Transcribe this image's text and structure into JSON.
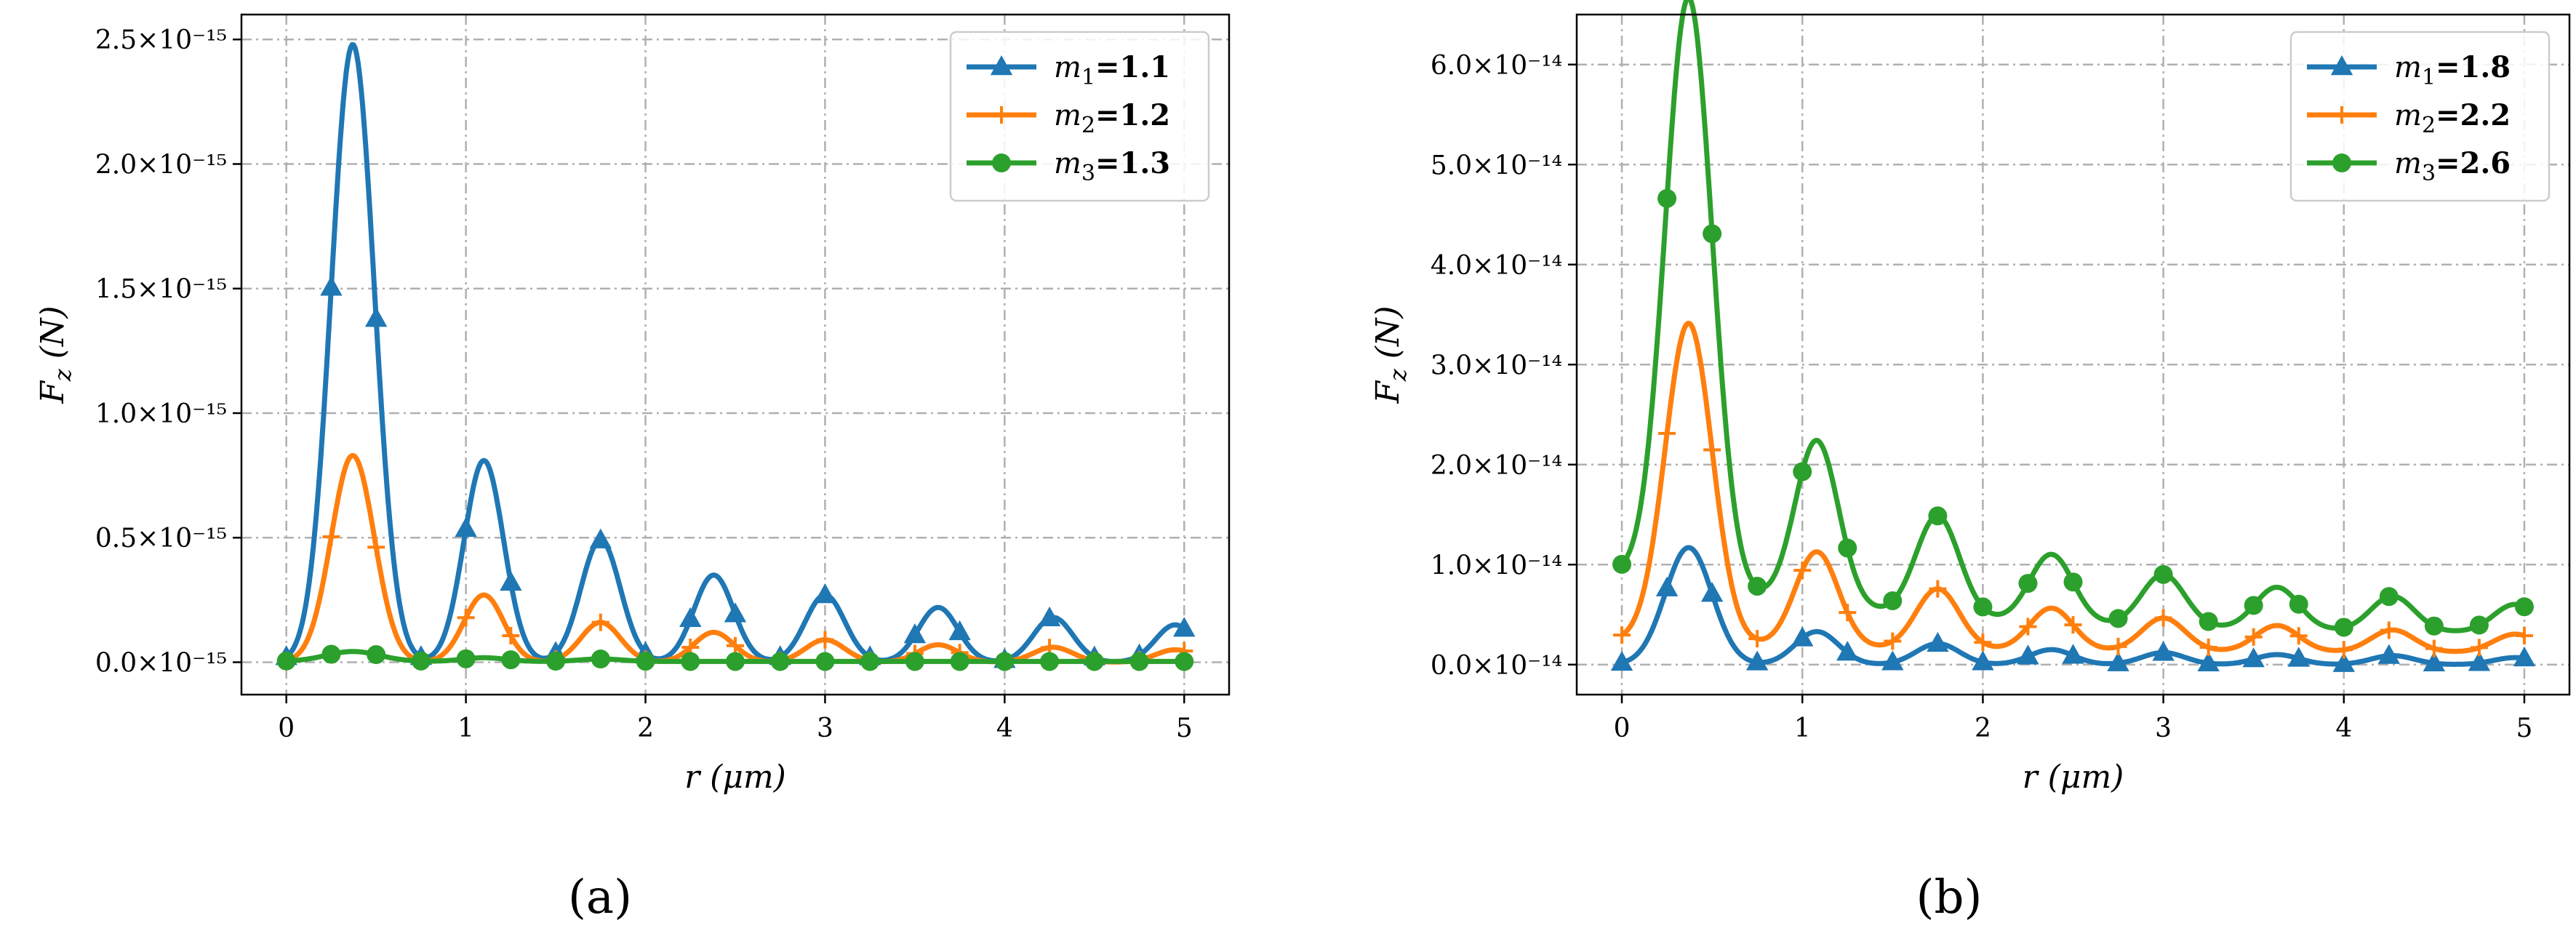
{
  "colors": {
    "series1": "#1f77b4",
    "series2": "#ff7f0e",
    "series3": "#2ca02c"
  },
  "chart_data": [
    {
      "type": "line",
      "panel_label": "(a)",
      "xlabel": "r (μm)",
      "ylabel": "F_z (N)",
      "ylabel_parts": {
        "main": "F",
        "sub": "z",
        "unit": " (N)"
      },
      "x_ticks": [
        "0",
        "1",
        "2",
        "3",
        "4",
        "5"
      ],
      "y_ticks": [
        "0.0×10⁻¹⁵",
        "0.5×10⁻¹⁵",
        "1.0×10⁻¹⁵",
        "1.5×10⁻¹⁵",
        "2.0×10⁻¹⁵",
        "2.5×10⁻¹⁵"
      ],
      "y_tick_values": [
        0,
        0.5,
        1.0,
        1.5,
        2.0,
        2.5
      ],
      "xlim": [
        -0.25,
        5.25
      ],
      "ylim": [
        -0.13,
        2.6
      ],
      "y_scale_note": "values in units of 1e-15 N",
      "x": [
        0,
        0.25,
        0.5,
        0.75,
        1.0,
        1.25,
        1.5,
        1.75,
        2.0,
        2.25,
        2.5,
        2.75,
        3.0,
        3.25,
        3.5,
        3.75,
        4.0,
        4.25,
        4.5,
        4.75,
        5.0
      ],
      "grid": true,
      "legend_position": "top-right",
      "series": [
        {
          "name": "m1=1.1",
          "legend": {
            "sym": "m",
            "sub": "1",
            "val": "=1.1"
          },
          "marker": "triangle",
          "color_key": "series1",
          "peaks": [
            [
              0.37,
              2.48,
              0.12
            ],
            [
              1.1,
              0.81,
              0.11
            ],
            [
              1.75,
              0.49,
              0.11
            ],
            [
              2.38,
              0.35,
              0.11
            ],
            [
              3.0,
              0.27,
              0.11
            ],
            [
              3.63,
              0.22,
              0.11
            ],
            [
              4.27,
              0.18,
              0.11
            ],
            [
              4.95,
              0.15,
              0.11
            ]
          ],
          "offset": 0,
          "tail_decay": 0
        },
        {
          "name": "m2=1.2",
          "legend": {
            "sym": "m",
            "sub": "2",
            "val": "=1.2"
          },
          "marker": "plus",
          "color_key": "series2",
          "peaks": [
            [
              0.37,
              0.83,
              0.12
            ],
            [
              1.1,
              0.27,
              0.11
            ],
            [
              1.75,
              0.16,
              0.11
            ],
            [
              2.38,
              0.12,
              0.11
            ],
            [
              3.0,
              0.09,
              0.11
            ],
            [
              3.63,
              0.07,
              0.11
            ],
            [
              4.27,
              0.06,
              0.11
            ],
            [
              4.95,
              0.05,
              0.11
            ]
          ],
          "offset": 0,
          "tail_decay": 0
        },
        {
          "name": "m3=1.3",
          "legend": {
            "sym": "m",
            "sub": "3",
            "val": "=1.3"
          },
          "marker": "circle",
          "color_key": "series3",
          "peaks": [
            [
              0.37,
              0.04,
              0.15
            ],
            [
              1.1,
              0.015,
              0.12
            ],
            [
              1.75,
              0.01,
              0.12
            ]
          ],
          "offset": 0.003,
          "tail_decay": 0
        }
      ]
    },
    {
      "type": "line",
      "panel_label": "(b)",
      "xlabel": "r (μm)",
      "ylabel": "F_z (N)",
      "ylabel_parts": {
        "main": "F",
        "sub": "z",
        "unit": " (N)"
      },
      "x_ticks": [
        "0",
        "1",
        "2",
        "3",
        "4",
        "5"
      ],
      "y_ticks": [
        "0.0×10⁻¹⁴",
        "1.0×10⁻¹⁴",
        "2.0×10⁻¹⁴",
        "3.0×10⁻¹⁴",
        "4.0×10⁻¹⁴",
        "5.0×10⁻¹⁴",
        "6.0×10⁻¹⁴"
      ],
      "y_tick_values": [
        0,
        1.0,
        2.0,
        3.0,
        4.0,
        5.0,
        6.0
      ],
      "xlim": [
        -0.25,
        5.25
      ],
      "ylim": [
        -0.3,
        6.5
      ],
      "y_scale_note": "values in units of 1e-14 N",
      "x": [
        0,
        0.25,
        0.5,
        0.75,
        1.0,
        1.25,
        1.5,
        1.75,
        2.0,
        2.25,
        2.5,
        2.75,
        3.0,
        3.25,
        3.5,
        3.75,
        4.0,
        4.25,
        4.5,
        4.75,
        5.0
      ],
      "grid": true,
      "legend_position": "top-right",
      "series": [
        {
          "name": "m1=1.8",
          "legend": {
            "sym": "m",
            "sub": "1",
            "val": "=1.8"
          },
          "marker": "triangle",
          "color_key": "series1",
          "peaks": [
            [
              0.37,
              1.17,
              0.13
            ],
            [
              1.08,
              0.33,
              0.12
            ],
            [
              1.75,
              0.21,
              0.12
            ],
            [
              2.38,
              0.15,
              0.12
            ],
            [
              3.0,
              0.12,
              0.12
            ],
            [
              3.63,
              0.1,
              0.12
            ],
            [
              4.27,
              0.09,
              0.12
            ],
            [
              4.95,
              0.07,
              0.12
            ]
          ],
          "offset": 0.0,
          "tail_decay": 0
        },
        {
          "name": "m2=2.2",
          "legend": {
            "sym": "m",
            "sub": "2",
            "val": "=2.2"
          },
          "marker": "plus",
          "color_key": "series2",
          "peaks": [
            [
              0.37,
              3.2,
              0.13
            ],
            [
              1.08,
              0.95,
              0.12
            ],
            [
              1.75,
              0.6,
              0.12
            ],
            [
              2.38,
              0.42,
              0.12
            ],
            [
              3.0,
              0.33,
              0.12
            ],
            [
              3.63,
              0.26,
              0.12
            ],
            [
              4.27,
              0.22,
              0.12
            ],
            [
              4.95,
              0.18,
              0.12
            ]
          ],
          "offset": 0.12,
          "tail_decay": 0.12
        },
        {
          "name": "m3=2.6",
          "legend": {
            "sym": "m",
            "sub": "3",
            "val": "=2.6"
          },
          "marker": "circle",
          "color_key": "series3",
          "peaks": [
            [
              0.37,
              5.9,
              0.13
            ],
            [
              1.08,
              1.65,
              0.12
            ],
            [
              1.75,
              1.0,
              0.12
            ],
            [
              2.38,
              0.68,
              0.12
            ],
            [
              3.0,
              0.52,
              0.12
            ],
            [
              3.63,
              0.42,
              0.12
            ],
            [
              4.27,
              0.35,
              0.12
            ],
            [
              4.95,
              0.28,
              0.12
            ]
          ],
          "offset": 0.3,
          "tail_decay": 0.6
        }
      ]
    }
  ]
}
